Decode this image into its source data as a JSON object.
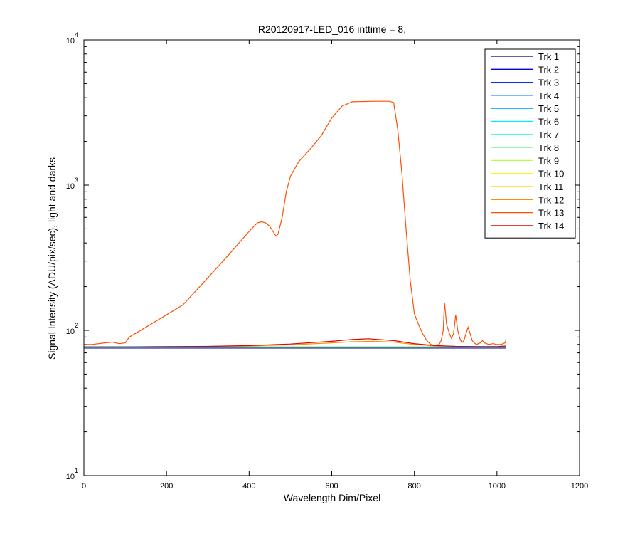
{
  "chart_data": {
    "type": "line",
    "title": "R20120917-LED_016 inttime = 8,",
    "xlabel": "Wavelength Dim/Pixel",
    "ylabel": "Signal Intensity (ADU/pix/sec), light and darks",
    "xlim": [
      0,
      1200
    ],
    "ylim": [
      10,
      10000
    ],
    "yscale": "log",
    "grid": false,
    "legend_position": "top-right",
    "x_ticks": [
      "0",
      "200",
      "400",
      "600",
      "800",
      "1000",
      "1200"
    ],
    "y_ticks": [
      {
        "base": "10",
        "exp": "1"
      },
      {
        "base": "10",
        "exp": "2"
      },
      {
        "base": "10",
        "exp": "3"
      },
      {
        "base": "10",
        "exp": "4"
      }
    ],
    "series": [
      {
        "name": "Trk 1",
        "color": "#00008f",
        "baseline": 75.5
      },
      {
        "name": "Trk 2",
        "color": "#0000df",
        "baseline": 75.8
      },
      {
        "name": "Trk 3",
        "color": "#0030ff",
        "baseline": 76.0
      },
      {
        "name": "Trk 4",
        "color": "#0070ff",
        "baseline": 76.2
      },
      {
        "name": "Trk 5",
        "color": "#00afff",
        "baseline": 76.4
      },
      {
        "name": "Trk 6",
        "color": "#00efff",
        "baseline": 76.6
      },
      {
        "name": "Trk 7",
        "color": "#30ffcf",
        "baseline": 76.7
      },
      {
        "name": "Trk 8",
        "color": "#70ff8f",
        "baseline": 76.8
      },
      {
        "name": "Trk 9",
        "color": "#afff50",
        "baseline": 76.9
      },
      {
        "name": "Trk 10",
        "color": "#efff10",
        "baseline": 77.0
      },
      {
        "name": "Trk 11",
        "color": "#ffcf00",
        "baseline": 77.1
      },
      {
        "name": "Trk 12",
        "color": "#ff8f00",
        "baseline": 77.2,
        "x": [
          0,
          100,
          200,
          300,
          400,
          500,
          600,
          650,
          700,
          750,
          800,
          850,
          900,
          950,
          1000,
          1022
        ],
        "y": [
          77,
          77,
          77.2,
          77.5,
          78,
          79.5,
          82,
          83.5,
          84,
          83,
          80,
          78,
          77.5,
          77.2,
          77.2,
          78
        ]
      },
      {
        "name": "Trk 13",
        "color": "#ff4f00",
        "x": [
          0,
          20,
          50,
          70,
          85,
          100,
          110,
          150,
          200,
          240,
          300,
          350,
          400,
          420,
          430,
          440,
          450,
          460,
          465,
          470,
          480,
          490,
          500,
          520,
          550,
          575,
          600,
          625,
          650,
          700,
          740,
          750,
          760,
          770,
          780,
          790,
          800,
          810,
          820,
          830,
          840,
          850,
          860,
          865,
          870,
          873,
          878,
          885,
          890,
          895,
          900,
          905,
          910,
          915,
          920,
          925,
          930,
          935,
          940,
          945,
          950,
          955,
          960,
          965,
          970,
          980,
          990,
          1000,
          1010,
          1020,
          1022
        ],
        "y": [
          80,
          80,
          82,
          83,
          81,
          82,
          90,
          105,
          128,
          150,
          230,
          330,
          480,
          550,
          560,
          550,
          520,
          470,
          445,
          460,
          600,
          900,
          1150,
          1450,
          1800,
          2200,
          2900,
          3500,
          3750,
          3780,
          3780,
          3700,
          2400,
          1200,
          500,
          220,
          130,
          110,
          95,
          85,
          80,
          79,
          80,
          85,
          100,
          155,
          110,
          95,
          88,
          95,
          128,
          100,
          88,
          82,
          85,
          95,
          105,
          95,
          85,
          82,
          80,
          81,
          82,
          85,
          82,
          80,
          81,
          80,
          80,
          82,
          86
        ]
      },
      {
        "name": "Trk 14",
        "color": "#df0000",
        "baseline": 77.2,
        "x": [
          0,
          100,
          200,
          300,
          400,
          500,
          600,
          650,
          690,
          700,
          750,
          800,
          850,
          900,
          950,
          1000,
          1022
        ],
        "y": [
          77,
          77,
          77.3,
          77.6,
          78.5,
          80.5,
          84,
          86.5,
          87.5,
          87,
          85,
          81,
          78.5,
          77.6,
          77.3,
          77.2,
          78
        ]
      }
    ]
  }
}
